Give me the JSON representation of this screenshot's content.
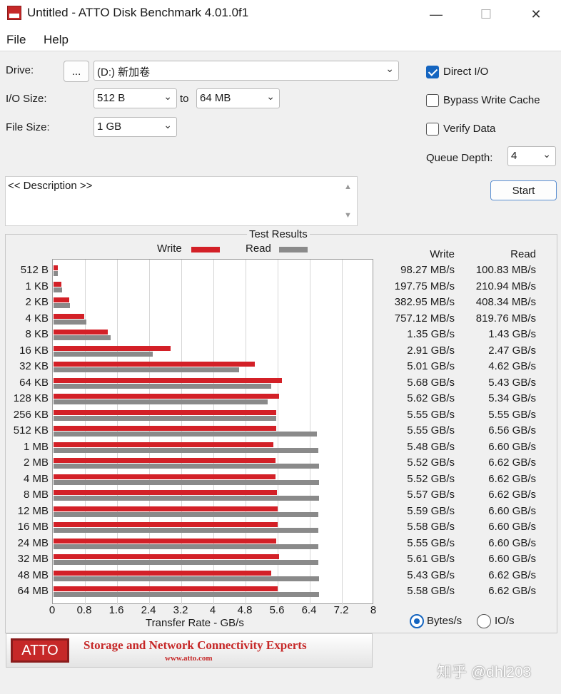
{
  "window": {
    "title": "Untitled - ATTO Disk Benchmark 4.01.0f1",
    "minimize": "—",
    "maximize": "☐",
    "close": "✕"
  },
  "menu": [
    "File",
    "Help"
  ],
  "settings": {
    "drive_label": "Drive:",
    "browse_label": "...",
    "drive_value": "(D:) 新加卷",
    "io_size_label": "I/O Size:",
    "io_from": "512 B",
    "to_label": "to",
    "io_to": "64 MB",
    "file_size_label": "File Size:",
    "file_size": "1 GB",
    "direct_io_label": "Direct I/O",
    "direct_io": true,
    "bypass_label": "Bypass Write Cache",
    "bypass": false,
    "verify_label": "Verify Data",
    "verify": false,
    "queue_label": "Queue Depth:",
    "queue_depth": "4",
    "start_label": "Start"
  },
  "description_placeholder": "<< Description >>",
  "results": {
    "group_title": "Test Results",
    "legend_write": "Write",
    "legend_read": "Read",
    "col_write": "Write",
    "col_read": "Read",
    "x_axis_label": "Transfer Rate - GB/s",
    "units_bytes": "Bytes/s",
    "units_io": "IO/s",
    "units_selected": "bytes"
  },
  "chart_data": {
    "type": "bar",
    "orientation": "horizontal",
    "categories": [
      "512 B",
      "1 KB",
      "2 KB",
      "4 KB",
      "8 KB",
      "16 KB",
      "32 KB",
      "64 KB",
      "128 KB",
      "256 KB",
      "512 KB",
      "1 MB",
      "2 MB",
      "4 MB",
      "8 MB",
      "12 MB",
      "16 MB",
      "24 MB",
      "32 MB",
      "48 MB",
      "64 MB"
    ],
    "series": [
      {
        "name": "Write",
        "color": "#d32027",
        "values": [
          0.098,
          0.198,
          0.383,
          0.757,
          1.35,
          2.91,
          5.01,
          5.68,
          5.62,
          5.55,
          5.55,
          5.48,
          5.52,
          5.52,
          5.57,
          5.59,
          5.58,
          5.55,
          5.61,
          5.43,
          5.58
        ]
      },
      {
        "name": "Read",
        "color": "#8a8a8a",
        "values": [
          0.101,
          0.211,
          0.408,
          0.82,
          1.43,
          2.47,
          4.62,
          5.43,
          5.34,
          5.55,
          6.56,
          6.6,
          6.62,
          6.62,
          6.62,
          6.6,
          6.6,
          6.6,
          6.6,
          6.62,
          6.62
        ]
      }
    ],
    "write_labels": [
      "98.27 MB/s",
      "197.75 MB/s",
      "382.95 MB/s",
      "757.12 MB/s",
      "1.35 GB/s",
      "2.91 GB/s",
      "5.01 GB/s",
      "5.68 GB/s",
      "5.62 GB/s",
      "5.55 GB/s",
      "5.55 GB/s",
      "5.48 GB/s",
      "5.52 GB/s",
      "5.52 GB/s",
      "5.57 GB/s",
      "5.59 GB/s",
      "5.58 GB/s",
      "5.55 GB/s",
      "5.61 GB/s",
      "5.43 GB/s",
      "5.58 GB/s"
    ],
    "read_labels": [
      "100.83 MB/s",
      "210.94 MB/s",
      "408.34 MB/s",
      "819.76 MB/s",
      "1.43 GB/s",
      "2.47 GB/s",
      "4.62 GB/s",
      "5.43 GB/s",
      "5.34 GB/s",
      "5.55 GB/s",
      "6.56 GB/s",
      "6.60 GB/s",
      "6.62 GB/s",
      "6.62 GB/s",
      "6.62 GB/s",
      "6.60 GB/s",
      "6.60 GB/s",
      "6.60 GB/s",
      "6.60 GB/s",
      "6.62 GB/s",
      "6.62 GB/s"
    ],
    "x_ticks": [
      "0",
      "0.8",
      "1.6",
      "2.4",
      "3.2",
      "4",
      "4.8",
      "5.6",
      "6.4",
      "7.2",
      "8"
    ],
    "xlim": [
      0,
      8
    ],
    "xlabel": "Transfer Rate - GB/s",
    "grid": true,
    "legend": "top"
  },
  "banner": {
    "logo": "ATTO",
    "tagline": "Storage and Network Connectivity Experts",
    "url": "www.atto.com"
  },
  "watermark": "知乎 @dhl203"
}
